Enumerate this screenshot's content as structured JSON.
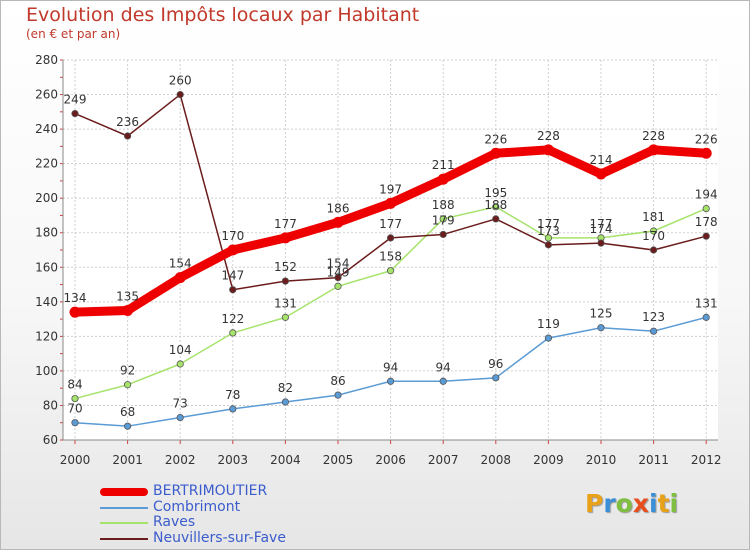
{
  "title": "Evolution des Impôts locaux par Habitant",
  "subtitle": "(en € et par an)",
  "logo": {
    "text": "Proxiti",
    "letters": [
      "P",
      "r",
      "o",
      "x",
      "i",
      "t",
      "i"
    ],
    "colors": [
      "#e8a21a",
      "#3a8fd6",
      "#7fbf3f",
      "#e84e1b",
      "#3a8fd6",
      "#e8a21a",
      "#7fbf3f"
    ]
  },
  "chart_data": {
    "type": "line",
    "title": "Evolution des Impôts locaux par Habitant",
    "subtitle": "(en € et par an)",
    "xlabel": "",
    "ylabel": "",
    "ylim": [
      60,
      280
    ],
    "yticks": [
      60,
      80,
      100,
      120,
      140,
      160,
      180,
      200,
      220,
      240,
      260,
      280
    ],
    "x": [
      2000,
      2001,
      2002,
      2003,
      2004,
      2005,
      2006,
      2007,
      2008,
      2009,
      2010,
      2011,
      2012
    ],
    "grid": true,
    "legend_position": "bottom-left",
    "series": [
      {
        "name": "BERTRIMOUTIER",
        "color": "#ee0000",
        "values": [
          134,
          135,
          154,
          170,
          177,
          186,
          197,
          211,
          226,
          228,
          214,
          228,
          226
        ]
      },
      {
        "name": "Combrimont",
        "color": "#5b9bd5",
        "values": [
          70,
          68,
          73,
          78,
          82,
          86,
          94,
          94,
          96,
          119,
          125,
          123,
          131
        ]
      },
      {
        "name": "Raves",
        "color": "#a6e36b",
        "values": [
          84,
          92,
          104,
          122,
          131,
          149,
          158,
          188,
          195,
          177,
          177,
          181,
          194
        ]
      },
      {
        "name": "Neuvillers-sur-Fave",
        "color": "#6b1c1c",
        "values": [
          249,
          236,
          260,
          147,
          152,
          154,
          177,
          179,
          188,
          173,
          174,
          170,
          178
        ]
      }
    ]
  }
}
